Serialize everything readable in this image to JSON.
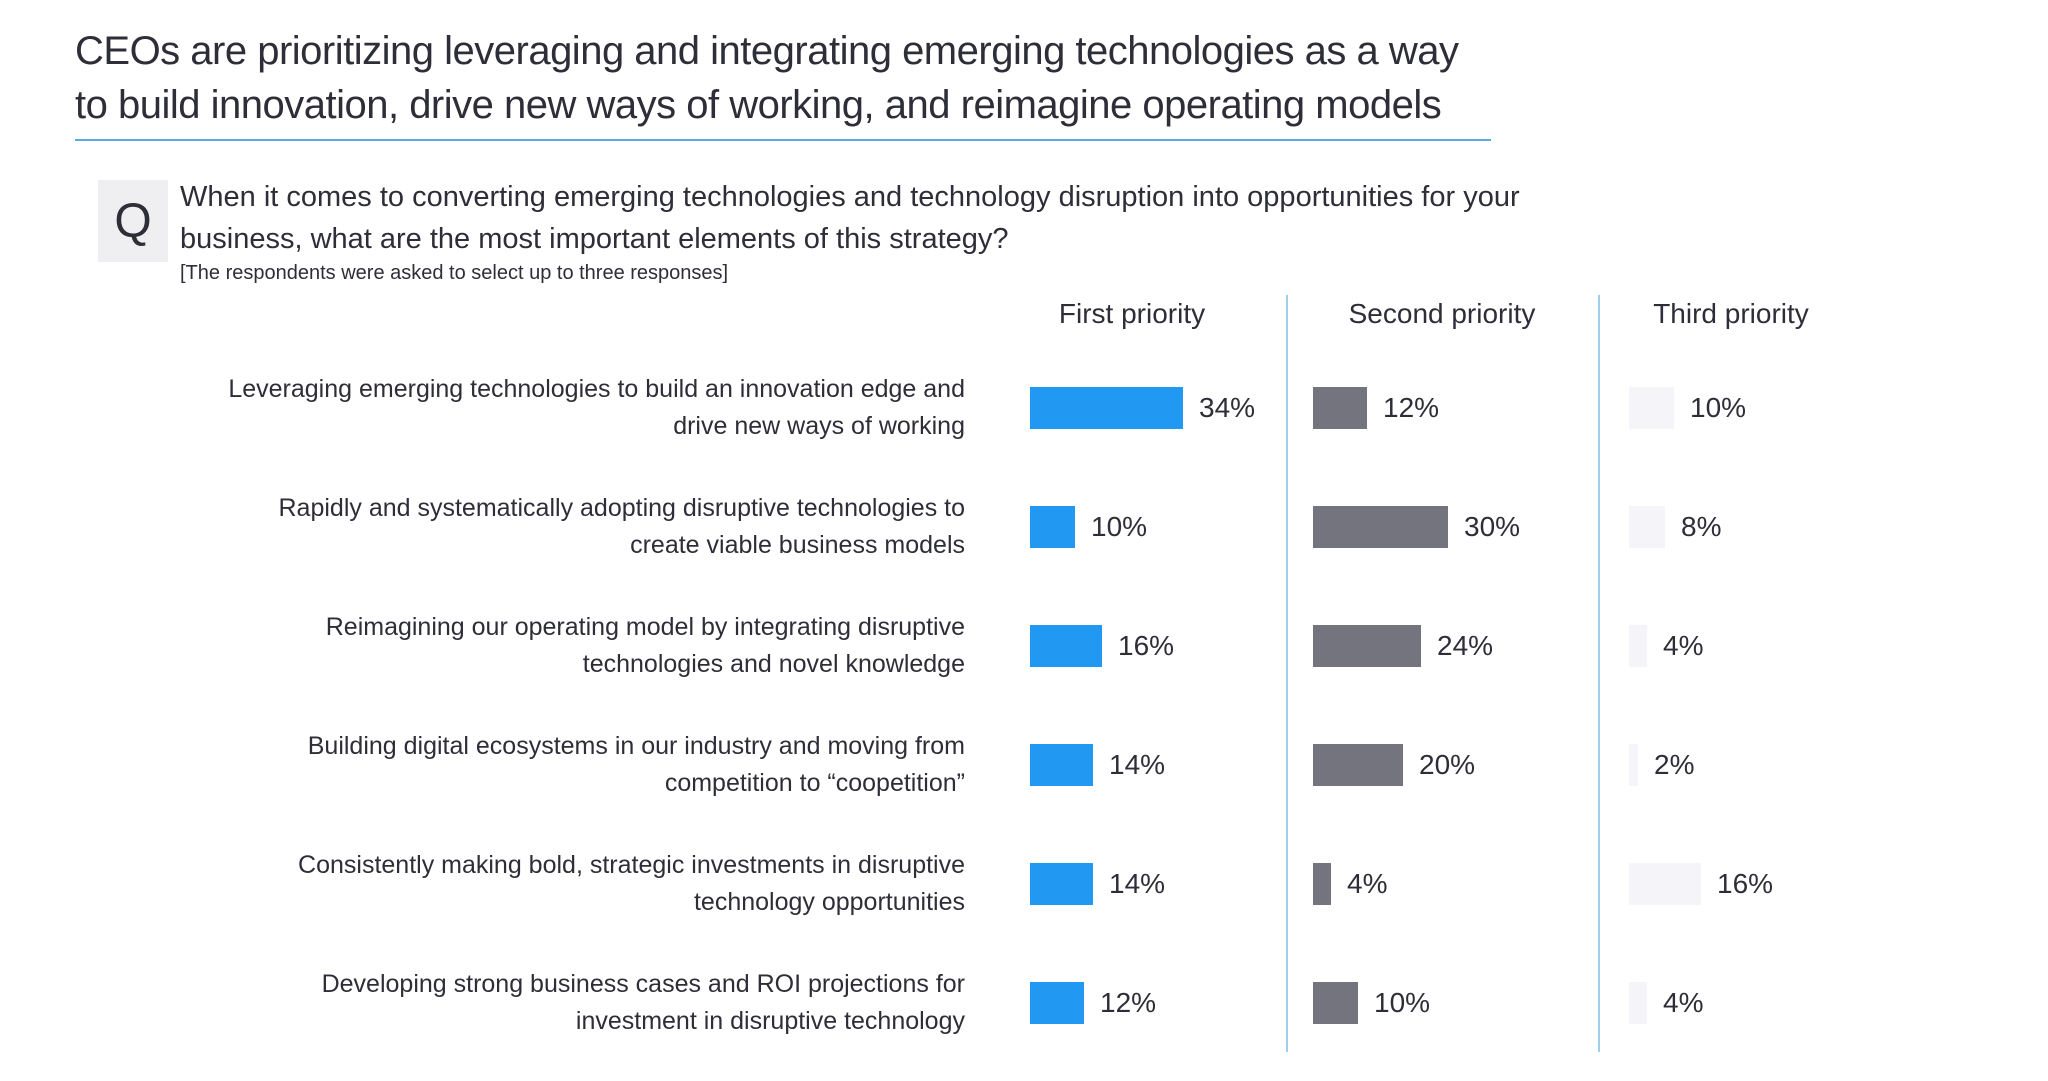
{
  "title": {
    "lines": [
      "CEOs are prioritizing leveraging and integrating emerging technologies as a way",
      "to build innovation, drive new ways of working, and reimagine operating models"
    ]
  },
  "question": {
    "badge": "Q",
    "lines": [
      "When it comes to converting emerging technologies and technology disruption into opportunities for your",
      "business, what are the most important elements of this strategy?"
    ],
    "note": "[The respondents were asked to select up to three responses]"
  },
  "columns": [
    "First priority",
    "Second priority",
    "Third priority"
  ],
  "colors": {
    "first_priority_bar": "#2199f2",
    "second_priority_bar": "#74747f",
    "third_priority_bar": "#f5f5f9",
    "divider": "#9ecfed",
    "title_rule": "#57ade3",
    "text": "#2e2e38",
    "badge_bg": "#efeff1"
  },
  "chart_data": {
    "type": "bar",
    "orientation": "horizontal",
    "unit": "%",
    "xlim": [
      0,
      40
    ],
    "grid": false,
    "legend_position": "column-headers-top",
    "categories": [
      "Leveraging emerging technologies to build an innovation edge and drive new ways of working",
      "Rapidly and systematically adopting disruptive technologies to create viable business models",
      "Reimagining our operating model by integrating disruptive technologies and novel knowledge",
      "Building digital ecosystems in our industry and moving from competition to “coopetition”",
      "Consistently making bold, strategic investments in disruptive technology opportunities",
      "Developing strong business cases and ROI projections for investment in disruptive technology"
    ],
    "series": [
      {
        "name": "First priority",
        "color": "#2199f2",
        "values": [
          34,
          10,
          16,
          14,
          14,
          12
        ]
      },
      {
        "name": "Second priority",
        "color": "#74747f",
        "values": [
          12,
          30,
          24,
          20,
          4,
          10
        ]
      },
      {
        "name": "Third priority",
        "color": "#f5f5f9",
        "values": [
          10,
          8,
          4,
          2,
          16,
          4
        ]
      }
    ]
  }
}
